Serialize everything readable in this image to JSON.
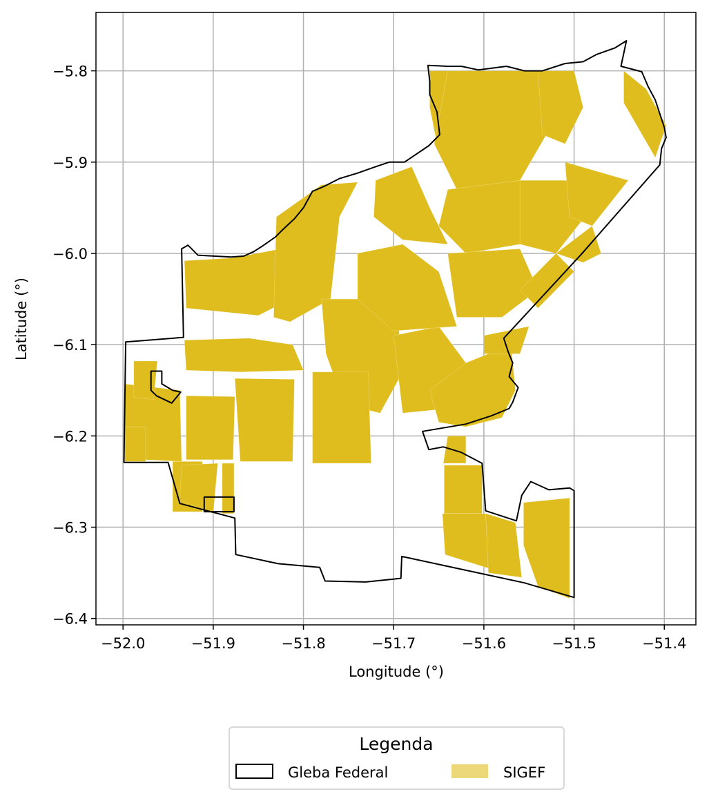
{
  "chart_data": {
    "type": "map",
    "xlabel": "Longitude (°)",
    "ylabel": "Latitude (°)",
    "xlim": [
      -52.03,
      -51.365
    ],
    "ylim": [
      -6.407,
      -5.736
    ],
    "grid": true,
    "x_ticks": [
      {
        "value": -52.0,
        "label": "−52.0"
      },
      {
        "value": -51.9,
        "label": "−51.9"
      },
      {
        "value": -51.8,
        "label": "−51.8"
      },
      {
        "value": -51.7,
        "label": "−51.7"
      },
      {
        "value": -51.6,
        "label": "−51.6"
      },
      {
        "value": -51.5,
        "label": "−51.5"
      },
      {
        "value": -51.4,
        "label": "−51.4"
      }
    ],
    "y_ticks": [
      {
        "value": -5.8,
        "label": "−5.8"
      },
      {
        "value": -5.9,
        "label": "−5.9"
      },
      {
        "value": -6.0,
        "label": "−6.0"
      },
      {
        "value": -6.1,
        "label": "−6.1"
      },
      {
        "value": -6.2,
        "label": "−6.2"
      },
      {
        "value": -6.3,
        "label": "−6.3"
      },
      {
        "value": -6.4,
        "label": "−6.4"
      }
    ],
    "legend": {
      "title": "Legenda",
      "placement": "bottom-center",
      "items": [
        {
          "label": "Gleba Federal",
          "style": "outline",
          "color": "#000000"
        },
        {
          "label": "SIGEF",
          "style": "fill",
          "color": "#E0BD1F"
        }
      ]
    },
    "colors": {
      "sigef": "#E0BD1F",
      "boundary": "#000000",
      "grid": "#b0b0b0"
    },
    "gleba_federal_boundary": [
      [
        -51.442,
        -5.767
      ],
      [
        -51.448,
        -5.795
      ],
      [
        -51.425,
        -5.801
      ],
      [
        -51.418,
        -5.817
      ],
      [
        -51.41,
        -5.832
      ],
      [
        -51.4,
        -5.862
      ],
      [
        -51.398,
        -5.873
      ],
      [
        -51.403,
        -5.885
      ],
      [
        -51.405,
        -5.903
      ],
      [
        -51.492,
        -6.001
      ],
      [
        -51.578,
        -6.093
      ],
      [
        -51.573,
        -6.108
      ],
      [
        -51.568,
        -6.12
      ],
      [
        -51.572,
        -6.135
      ],
      [
        -51.562,
        -6.147
      ],
      [
        -51.568,
        -6.163
      ],
      [
        -51.572,
        -6.17
      ],
      [
        -51.592,
        -6.178
      ],
      [
        -51.62,
        -6.187
      ],
      [
        -51.65,
        -6.192
      ],
      [
        -51.668,
        -6.195
      ],
      [
        -51.661,
        -6.215
      ],
      [
        -51.645,
        -6.212
      ],
      [
        -51.625,
        -6.218
      ],
      [
        -51.602,
        -6.23
      ],
      [
        -51.598,
        -6.282
      ],
      [
        -51.564,
        -6.293
      ],
      [
        -51.558,
        -6.265
      ],
      [
        -51.548,
        -6.25
      ],
      [
        -51.528,
        -6.259
      ],
      [
        -51.505,
        -6.257
      ],
      [
        -51.5,
        -6.26
      ],
      [
        -51.5,
        -6.377
      ],
      [
        -51.555,
        -6.361
      ],
      [
        -51.691,
        -6.332
      ],
      [
        -51.692,
        -6.356
      ],
      [
        -51.731,
        -6.36
      ],
      [
        -51.776,
        -6.359
      ],
      [
        -51.782,
        -6.344
      ],
      [
        -51.828,
        -6.34
      ],
      [
        -51.875,
        -6.33
      ],
      [
        -51.876,
        -6.29
      ],
      [
        -51.937,
        -6.274
      ],
      [
        -51.95,
        -6.229
      ],
      [
        -51.999,
        -6.229
      ],
      [
        -51.997,
        -6.097
      ],
      [
        -51.933,
        -6.092
      ],
      [
        -51.935,
        -5.995
      ],
      [
        -51.928,
        -5.991
      ],
      [
        -51.917,
        -6.002
      ],
      [
        -51.88,
        -6.004
      ],
      [
        -51.866,
        -6.003
      ],
      [
        -51.855,
        -5.998
      ],
      [
        -51.844,
        -5.991
      ],
      [
        -51.831,
        -5.982
      ],
      [
        -51.824,
        -5.975
      ],
      [
        -51.81,
        -5.962
      ],
      [
        -51.8,
        -5.95
      ],
      [
        -51.79,
        -5.932
      ],
      [
        -51.778,
        -5.927
      ],
      [
        -51.76,
        -5.918
      ],
      [
        -51.74,
        -5.912
      ],
      [
        -51.72,
        -5.905
      ],
      [
        -51.705,
        -5.9
      ],
      [
        -51.688,
        -5.9
      ],
      [
        -51.661,
        -5.882
      ],
      [
        -51.649,
        -5.87
      ],
      [
        -51.652,
        -5.845
      ],
      [
        -51.66,
        -5.826
      ],
      [
        -51.66,
        -5.812
      ],
      [
        -51.662,
        -5.794
      ],
      [
        -51.64,
        -5.795
      ],
      [
        -51.625,
        -5.795
      ],
      [
        -51.606,
        -5.799
      ],
      [
        -51.575,
        -5.795
      ],
      [
        -51.555,
        -5.8
      ],
      [
        -51.535,
        -5.8
      ],
      [
        -51.51,
        -5.792
      ],
      [
        -51.49,
        -5.79
      ],
      [
        -51.475,
        -5.782
      ],
      [
        -51.455,
        -5.775
      ],
      [
        -51.442,
        -5.767
      ]
    ],
    "gleba_federal_inner_parcels": [
      [
        [
          -51.91,
          -6.267
        ],
        [
          -51.877,
          -6.267
        ],
        [
          -51.877,
          -6.283
        ],
        [
          -51.91,
          -6.283
        ],
        [
          -51.91,
          -6.267
        ]
      ],
      [
        [
          -51.969,
          -6.129
        ],
        [
          -51.957,
          -6.129
        ],
        [
          -51.957,
          -6.143
        ],
        [
          -51.945,
          -6.15
        ],
        [
          -51.936,
          -6.152
        ],
        [
          -51.946,
          -6.164
        ],
        [
          -51.963,
          -6.156
        ],
        [
          -51.969,
          -6.15
        ],
        [
          -51.969,
          -6.129
        ]
      ]
    ],
    "sigef_parcels": [
      [
        [
          -51.89,
          -6.23
        ],
        [
          -51.877,
          -6.23
        ],
        [
          -51.877,
          -6.285
        ],
        [
          -51.89,
          -6.285
        ],
        [
          -51.89,
          -6.23
        ]
      ],
      [
        [
          -51.876,
          -6.137
        ],
        [
          -51.81,
          -6.138
        ],
        [
          -51.812,
          -6.228
        ],
        [
          -51.87,
          -6.228
        ],
        [
          -51.876,
          -6.137
        ]
      ],
      [
        [
          -51.93,
          -6.156
        ],
        [
          -51.876,
          -6.157
        ],
        [
          -51.878,
          -6.226
        ],
        [
          -51.93,
          -6.226
        ],
        [
          -51.93,
          -6.156
        ]
      ],
      [
        [
          -51.998,
          -6.143
        ],
        [
          -51.937,
          -6.15
        ],
        [
          -51.935,
          -6.228
        ],
        [
          -51.998,
          -6.225
        ],
        [
          -51.998,
          -6.143
        ]
      ],
      [
        [
          -51.945,
          -6.228
        ],
        [
          -51.912,
          -6.228
        ],
        [
          -51.912,
          -6.283
        ],
        [
          -51.945,
          -6.283
        ],
        [
          -51.945,
          -6.228
        ]
      ],
      [
        [
          -51.988,
          -6.118
        ],
        [
          -51.962,
          -6.118
        ],
        [
          -51.966,
          -6.16
        ],
        [
          -51.988,
          -6.158
        ],
        [
          -51.988,
          -6.118
        ]
      ],
      [
        [
          -51.932,
          -6.095
        ],
        [
          -51.86,
          -6.093
        ],
        [
          -51.812,
          -6.1
        ],
        [
          -51.8,
          -6.128
        ],
        [
          -51.87,
          -6.13
        ],
        [
          -51.93,
          -6.128
        ],
        [
          -51.932,
          -6.095
        ]
      ],
      [
        [
          -51.932,
          -6.008
        ],
        [
          -51.878,
          -6.005
        ],
        [
          -51.825,
          -5.995
        ],
        [
          -51.81,
          -6.048
        ],
        [
          -51.85,
          -6.068
        ],
        [
          -51.93,
          -6.06
        ],
        [
          -51.932,
          -6.008
        ]
      ],
      [
        [
          -51.83,
          -5.96
        ],
        [
          -51.78,
          -5.925
        ],
        [
          -51.74,
          -5.922
        ],
        [
          -51.76,
          -5.96
        ],
        [
          -51.77,
          -6.05
        ],
        [
          -51.815,
          -6.075
        ],
        [
          -51.833,
          -6.07
        ],
        [
          -51.83,
          -5.96
        ]
      ],
      [
        [
          -51.78,
          -6.05
        ],
        [
          -51.72,
          -6.05
        ],
        [
          -51.695,
          -6.075
        ],
        [
          -51.69,
          -6.13
        ],
        [
          -51.715,
          -6.175
        ],
        [
          -51.755,
          -6.165
        ],
        [
          -51.775,
          -6.11
        ],
        [
          -51.78,
          -6.05
        ]
      ],
      [
        [
          -51.79,
          -6.13
        ],
        [
          -51.728,
          -6.13
        ],
        [
          -51.725,
          -6.23
        ],
        [
          -51.79,
          -6.23
        ],
        [
          -51.79,
          -6.13
        ]
      ],
      [
        [
          -51.7,
          -6.09
        ],
        [
          -51.65,
          -6.08
        ],
        [
          -51.62,
          -6.12
        ],
        [
          -51.64,
          -6.17
        ],
        [
          -51.69,
          -6.175
        ],
        [
          -51.7,
          -6.09
        ]
      ],
      [
        [
          -51.74,
          -6.0
        ],
        [
          -51.69,
          -5.99
        ],
        [
          -51.65,
          -6.02
        ],
        [
          -51.63,
          -6.08
        ],
        [
          -51.7,
          -6.085
        ],
        [
          -51.74,
          -6.05
        ],
        [
          -51.74,
          -6.0
        ]
      ],
      [
        [
          -51.72,
          -5.92
        ],
        [
          -51.68,
          -5.905
        ],
        [
          -51.66,
          -5.95
        ],
        [
          -51.64,
          -5.99
        ],
        [
          -51.69,
          -5.985
        ],
        [
          -51.722,
          -5.96
        ],
        [
          -51.72,
          -5.92
        ]
      ],
      [
        [
          -51.66,
          -5.8
        ],
        [
          -51.625,
          -5.8
        ],
        [
          -51.64,
          -5.84
        ],
        [
          -51.652,
          -5.88
        ],
        [
          -51.66,
          -5.84
        ],
        [
          -51.66,
          -5.8
        ]
      ],
      [
        [
          -51.64,
          -5.8
        ],
        [
          -51.54,
          -5.8
        ],
        [
          -51.525,
          -5.86
        ],
        [
          -51.56,
          -5.92
        ],
        [
          -51.63,
          -5.93
        ],
        [
          -51.655,
          -5.88
        ],
        [
          -51.64,
          -5.8
        ]
      ],
      [
        [
          -51.54,
          -5.8
        ],
        [
          -51.5,
          -5.8
        ],
        [
          -51.49,
          -5.84
        ],
        [
          -51.51,
          -5.88
        ],
        [
          -51.535,
          -5.87
        ],
        [
          -51.54,
          -5.8
        ]
      ],
      [
        [
          -51.64,
          -5.93
        ],
        [
          -51.56,
          -5.92
        ],
        [
          -51.53,
          -5.95
        ],
        [
          -51.56,
          -5.99
        ],
        [
          -51.62,
          -6.0
        ],
        [
          -51.65,
          -5.97
        ],
        [
          -51.64,
          -5.93
        ]
      ],
      [
        [
          -51.56,
          -5.92
        ],
        [
          -51.5,
          -5.92
        ],
        [
          -51.48,
          -5.95
        ],
        [
          -51.52,
          -6.0
        ],
        [
          -51.56,
          -5.99
        ],
        [
          -51.56,
          -5.92
        ]
      ],
      [
        [
          -51.52,
          -6.0
        ],
        [
          -51.48,
          -5.97
        ],
        [
          -51.47,
          -6.0
        ],
        [
          -51.49,
          -6.01
        ],
        [
          -51.52,
          -6.0
        ]
      ],
      [
        [
          -51.51,
          -5.9
        ],
        [
          -51.44,
          -5.92
        ],
        [
          -51.48,
          -5.97
        ],
        [
          -51.505,
          -5.96
        ],
        [
          -51.51,
          -5.9
        ]
      ],
      [
        [
          -51.64,
          -6.0
        ],
        [
          -51.56,
          -5.995
        ],
        [
          -51.54,
          -6.04
        ],
        [
          -51.58,
          -6.07
        ],
        [
          -51.63,
          -6.07
        ],
        [
          -51.64,
          -6.0
        ]
      ],
      [
        [
          -51.56,
          -6.04
        ],
        [
          -51.52,
          -6.0
        ],
        [
          -51.5,
          -6.02
        ],
        [
          -51.54,
          -6.06
        ],
        [
          -51.56,
          -6.04
        ]
      ],
      [
        [
          -51.62,
          -6.12
        ],
        [
          -51.57,
          -6.1
        ],
        [
          -51.565,
          -6.15
        ],
        [
          -51.58,
          -6.18
        ],
        [
          -51.62,
          -6.19
        ],
        [
          -51.65,
          -6.185
        ],
        [
          -51.66,
          -6.15
        ],
        [
          -51.62,
          -6.12
        ]
      ],
      [
        [
          -51.6,
          -6.09
        ],
        [
          -51.55,
          -6.08
        ],
        [
          -51.56,
          -6.11
        ],
        [
          -51.6,
          -6.11
        ],
        [
          -51.6,
          -6.09
        ]
      ],
      [
        [
          -51.64,
          -6.2
        ],
        [
          -51.62,
          -6.2
        ],
        [
          -51.62,
          -6.23
        ],
        [
          -51.645,
          -6.23
        ],
        [
          -51.64,
          -6.2
        ]
      ],
      [
        [
          -51.644,
          -6.232
        ],
        [
          -51.602,
          -6.232
        ],
        [
          -51.602,
          -6.285
        ],
        [
          -51.644,
          -6.285
        ],
        [
          -51.644,
          -6.232
        ]
      ],
      [
        [
          -51.646,
          -6.285
        ],
        [
          -51.598,
          -6.285
        ],
        [
          -51.595,
          -6.345
        ],
        [
          -51.643,
          -6.33
        ],
        [
          -51.646,
          -6.285
        ]
      ],
      [
        [
          -51.556,
          -6.273
        ],
        [
          -51.505,
          -6.268
        ],
        [
          -51.505,
          -6.378
        ],
        [
          -51.54,
          -6.365
        ],
        [
          -51.556,
          -6.32
        ],
        [
          -51.556,
          -6.273
        ]
      ],
      [
        [
          -51.598,
          -6.285
        ],
        [
          -51.565,
          -6.295
        ],
        [
          -51.558,
          -6.355
        ],
        [
          -51.595,
          -6.35
        ],
        [
          -51.598,
          -6.285
        ]
      ],
      [
        [
          -51.445,
          -5.8
        ],
        [
          -51.42,
          -5.82
        ],
        [
          -51.398,
          -5.86
        ],
        [
          -51.41,
          -5.895
        ],
        [
          -51.445,
          -5.835
        ],
        [
          -51.445,
          -5.8
        ]
      ],
      [
        [
          -51.895,
          -6.23
        ],
        [
          -51.935,
          -6.232
        ],
        [
          -51.937,
          -6.27
        ],
        [
          -51.9,
          -6.285
        ],
        [
          -51.895,
          -6.23
        ]
      ],
      [
        [
          -51.998,
          -6.19
        ],
        [
          -51.975,
          -6.19
        ],
        [
          -51.975,
          -6.228
        ],
        [
          -51.998,
          -6.228
        ],
        [
          -51.998,
          -6.19
        ]
      ]
    ]
  }
}
